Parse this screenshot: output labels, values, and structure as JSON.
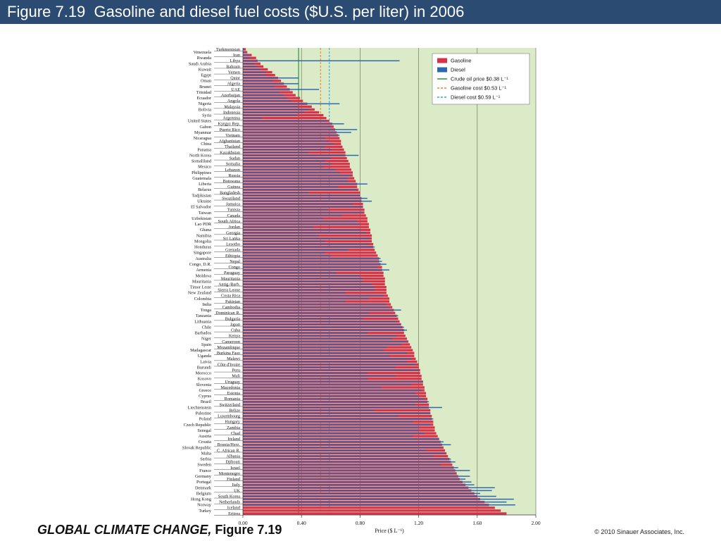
{
  "header": {
    "title": "Figure 7.19  Gasoline and diesel fuel costs ($U.S. per liter) in 2006"
  },
  "footer": {
    "book_title": "GLOBAL CLIMATE CHANGE,",
    "figure_label": "Figure 7.19",
    "copyright": "© 2010 Sinauer Associates, Inc."
  },
  "colors": {
    "title_bar": "#2b4b73",
    "plot_background": "#dcebc7",
    "gasoline": "#d6334a",
    "diesel": "#2a67b0",
    "crude_line": "#1e8a3b",
    "gasoline_cost_line": "#e8862a",
    "diesel_cost_line": "#3aa6d8"
  },
  "chart_data": {
    "type": "bar",
    "orientation": "horizontal",
    "xlabel": "Price ($ L⁻¹)",
    "xlim": [
      0,
      2
    ],
    "xticks": [
      "0.00",
      "0.40",
      "0.80",
      "1.20",
      "1.60",
      "2.00"
    ],
    "grid": "vertical lines at major ticks",
    "legend_position": "top-right",
    "legend": [
      {
        "label": "Gasoline",
        "kind": "bar",
        "color": "#d6334a"
      },
      {
        "label": "Diesel",
        "kind": "bar",
        "color": "#2a67b0"
      },
      {
        "label": "Crude oil price $0.38 L⁻¹",
        "kind": "solid-line",
        "color": "#1e8a3b"
      },
      {
        "label": "Gasoline cost $0.53 L⁻¹",
        "kind": "dashed-line",
        "color": "#e8862a"
      },
      {
        "label": "Diesel cost $0.59 L⁻¹",
        "kind": "dashed-line",
        "color": "#3aa6d8"
      }
    ],
    "reference_lines": [
      {
        "name": "Crude oil price",
        "x": 0.38,
        "style": "solid"
      },
      {
        "name": "Gasoline cost",
        "x": 0.53,
        "style": "dashed"
      },
      {
        "name": "Diesel cost",
        "x": 0.59,
        "style": "dashed"
      }
    ],
    "countries": [
      "Turkmenistan",
      "Venezuela",
      "Iran",
      "Rwanda",
      "Libya",
      "Saudi Arabia",
      "Bahrain",
      "Kuwait",
      "Yemen",
      "Egypt",
      "Qatar",
      "Oman",
      "Algeria",
      "Brunei",
      "UAE",
      "Trinidad",
      "Azerbaijan",
      "Ecuador",
      "Angola",
      "Nigeria",
      "Malaysia",
      "Bolivia",
      "Indonesia",
      "Syria",
      "Argentina",
      "United States",
      "Kyrgyz Rep.",
      "Gabon",
      "Puerto Rico",
      "Myanmar",
      "Vietnam",
      "Nicaragua",
      "Afghanistan",
      "China",
      "Thailand",
      "Panama",
      "Kazakhstan",
      "North Korea",
      "Sudan",
      "Somaliland",
      "Somalia",
      "Mexico",
      "Lebanon",
      "Philippines",
      "Russia",
      "Guatemala",
      "Botswana",
      "Liberia",
      "Guinea",
      "Belarus",
      "Bangladesh",
      "Tadjikistan",
      "Swaziland",
      "Ukraine",
      "Jamaica",
      "El Salvador",
      "Tunisia",
      "Taiwan",
      "Canada",
      "Uzbekistan",
      "South Africa",
      "Lao PDR",
      "Jordan",
      "Ghana",
      "Georgia",
      "Namibia",
      "Sri Lanka",
      "Mongolia",
      "Lesotho",
      "Honduras",
      "Grenada",
      "Singapore",
      "Ethiopia",
      "Australia",
      "Nepal",
      "Congo, D.R.",
      "Congo",
      "Armenia",
      "Paraguay",
      "Moldova",
      "Mauritania",
      "Mauritania",
      "Antig./Barb.",
      "Timor Leste",
      "Sierra Leone",
      "New Zealand",
      "Costa Rica",
      "Colombia",
      "Pakistan",
      "India",
      "Cambodia",
      "Tonga",
      "Dominican R.",
      "Tanzania",
      "Bulgaria",
      "Lithuania",
      "Japan",
      "Chile",
      "Cuba",
      "Barbados",
      "Kenya",
      "Niger",
      "Cameroon",
      "Spain",
      "Mozambique",
      "Madagascar",
      "Burkina Faso",
      "Uganda",
      "Malawi",
      "Latvia",
      "Côte d'Ivoire",
      "Burundi",
      "Peru",
      "Morocco",
      "Mali",
      "Kosovo",
      "Uruguay",
      "Slovenia",
      "Macedonia",
      "Greece",
      "Estonia",
      "Cyprus",
      "Romania",
      "Brazil",
      "Switzerland",
      "Liechtenstein",
      "Belize",
      "Palestine",
      "Luxembourg",
      "Poland",
      "Hungary",
      "Czech Republic",
      "Zambia",
      "Senegal",
      "Chad",
      "Austria",
      "Ireland",
      "Croatia",
      "Bosnia/Herz.",
      "Slovak Republic",
      "C. African R.",
      "Malta",
      "Albania",
      "Serbia",
      "Djibouti",
      "Sweden",
      "Israel",
      "France",
      "Montenegro",
      "Germany",
      "Finland",
      "Portugal",
      "Italy",
      "Denmark",
      "UK",
      "Belgium",
      "South Korea",
      "Hong Kong",
      "Netherlands",
      "Norway",
      "Iceland",
      "Turkey",
      "Eritrea"
    ],
    "series": [
      {
        "name": "Gasoline",
        "values": [
          0.02,
          0.03,
          0.06,
          0.09,
          0.1,
          0.12,
          0.14,
          0.17,
          0.2,
          0.22,
          0.24,
          0.26,
          0.28,
          0.3,
          0.32,
          0.34,
          0.36,
          0.39,
          0.41,
          0.44,
          0.47,
          0.49,
          0.52,
          0.55,
          0.57,
          0.59,
          0.61,
          0.62,
          0.63,
          0.64,
          0.65,
          0.66,
          0.67,
          0.67,
          0.68,
          0.69,
          0.7,
          0.7,
          0.71,
          0.72,
          0.73,
          0.73,
          0.74,
          0.75,
          0.75,
          0.76,
          0.77,
          0.78,
          0.78,
          0.79,
          0.8,
          0.8,
          0.81,
          0.81,
          0.82,
          0.82,
          0.83,
          0.83,
          0.84,
          0.85,
          0.85,
          0.86,
          0.86,
          0.87,
          0.87,
          0.88,
          0.88,
          0.88,
          0.89,
          0.89,
          0.9,
          0.91,
          0.92,
          0.93,
          0.93,
          0.94,
          0.95,
          0.95,
          0.96,
          0.96,
          0.97,
          0.97,
          0.97,
          0.98,
          0.98,
          0.98,
          0.99,
          1.0,
          1.0,
          1.01,
          1.02,
          1.03,
          1.04,
          1.05,
          1.06,
          1.07,
          1.08,
          1.09,
          1.1,
          1.1,
          1.11,
          1.12,
          1.13,
          1.14,
          1.15,
          1.16,
          1.17,
          1.17,
          1.18,
          1.19,
          1.2,
          1.2,
          1.21,
          1.21,
          1.22,
          1.22,
          1.23,
          1.23,
          1.24,
          1.24,
          1.25,
          1.25,
          1.26,
          1.26,
          1.27,
          1.27,
          1.28,
          1.28,
          1.29,
          1.29,
          1.3,
          1.3,
          1.31,
          1.31,
          1.32,
          1.33,
          1.34,
          1.35,
          1.36,
          1.37,
          1.38,
          1.39,
          1.4,
          1.41,
          1.42,
          1.43,
          1.44,
          1.45,
          1.46,
          1.47,
          1.48,
          1.5,
          1.52,
          1.54,
          1.56,
          1.58,
          1.6,
          1.62,
          1.65,
          1.68,
          1.72,
          1.76,
          1.8,
          1.85
        ]
      },
      {
        "name": "Diesel",
        "values": [
          0.01,
          0.02,
          0.04,
          0.05,
          1.07,
          0.08,
          0.1,
          0.12,
          0.15,
          0.16,
          0.38,
          0.2,
          0.38,
          0.22,
          0.52,
          0.25,
          0.28,
          0.3,
          0.33,
          0.66,
          0.38,
          0.45,
          0.42,
          0.37,
          0.13,
          0.57,
          0.69,
          0.6,
          0.78,
          0.74,
          0.66,
          0.56,
          0.58,
          0.62,
          0.56,
          0.6,
          0.45,
          0.79,
          0.6,
          0.56,
          0.6,
          0.55,
          0.63,
          0.66,
          0.74,
          0.72,
          0.72,
          0.85,
          0.65,
          0.78,
          0.45,
          0.8,
          0.85,
          0.88,
          0.75,
          0.82,
          0.58,
          0.82,
          0.68,
          0.55,
          0.78,
          0.8,
          0.48,
          0.8,
          0.84,
          0.52,
          0.87,
          0.56,
          0.86,
          0.9,
          0.72,
          0.56,
          0.6,
          0.94,
          0.95,
          0.98,
          0.92,
          1.0,
          0.64,
          0.8,
          0.82,
          0.82,
          0.88,
          0.9,
          0.9,
          0.7,
          0.96,
          0.86,
          0.7,
          0.98,
          1.0,
          1.08,
          0.86,
          1.06,
          0.82,
          1.05,
          1.08,
          1.1,
          1.12,
          0.85,
          1.05,
          1.02,
          1.12,
          1.08,
          0.98,
          0.96,
          1.12,
          1.0,
          1.15,
          1.12,
          1.18,
          1.04,
          1.2,
          0.85,
          1.04,
          0.85,
          1.23,
          1.15,
          0.95,
          1.22,
          1.18,
          1.2,
          1.24,
          1.27,
          1.18,
          1.36,
          0.9,
          1.28,
          1.06,
          1.3,
          1.16,
          1.28,
          1.2,
          1.2,
          1.24,
          1.16,
          1.34,
          1.37,
          1.42,
          1.35,
          1.25,
          1.38,
          1.3,
          1.42,
          1.45,
          1.35,
          1.47,
          1.55,
          1.45,
          1.55,
          1.52,
          1.56,
          1.58,
          1.72,
          1.7,
          1.62,
          1.73,
          1.85,
          1.8,
          1.86
        ]
      }
    ]
  }
}
